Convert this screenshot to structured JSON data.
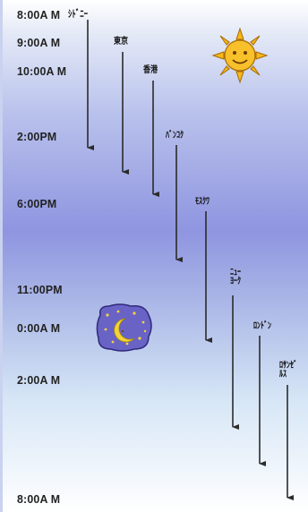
{
  "times": [
    "8:00A M",
    "9:00A M",
    "10:00A M",
    "2:00PM",
    "6:00PM",
    "11:00PM",
    "0:00A M",
    "2:00A M",
    "8:00A M"
  ],
  "cities": [
    "ｼﾄﾞﾆｰ",
    "東京",
    "香港",
    "ﾊﾞﾝｺｸ",
    "ﾓｽｸﾜ",
    "ﾆｭｰ\nﾖｰｸ",
    "ﾛﾝﾄﾞﾝ",
    "ﾛｻﾝｾﾞ\nﾙｽ"
  ],
  "icons": {
    "sun": "sun-icon",
    "moon": "moon-icon"
  },
  "colors": {
    "arrow": "#2b2b2b",
    "sun": "#f6b81b",
    "moon_bg": "#6a63c6"
  }
}
